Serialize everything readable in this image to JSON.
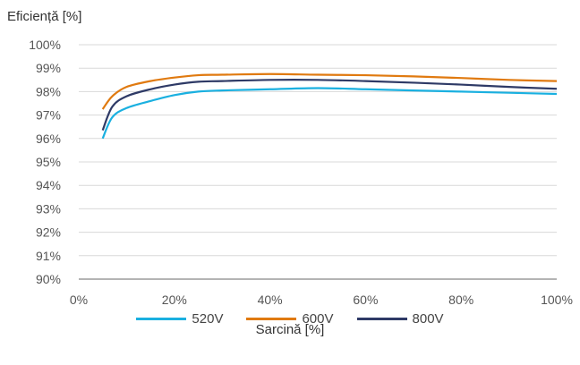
{
  "chart_data": {
    "type": "line",
    "ylabel": "Eficiență [%]",
    "xlabel": "Sarcină [%]",
    "xlim": [
      0,
      100
    ],
    "ylim": [
      90,
      100
    ],
    "x_ticks": [
      "0%",
      "20%",
      "40%",
      "60%",
      "80%",
      "100%"
    ],
    "y_ticks": [
      "90%",
      "91%",
      "92%",
      "93%",
      "94%",
      "95%",
      "96%",
      "97%",
      "98%",
      "99%",
      "100%"
    ],
    "grid": true,
    "legend_position": "bottom",
    "series": [
      {
        "name": "520V",
        "color": "#1ab0e0",
        "x": [
          5,
          7,
          10,
          15,
          20,
          25,
          30,
          40,
          50,
          60,
          70,
          80,
          90,
          100
        ],
        "y": [
          96.0,
          96.9,
          97.3,
          97.6,
          97.85,
          98.0,
          98.05,
          98.1,
          98.15,
          98.1,
          98.05,
          98.0,
          97.95,
          97.9
        ]
      },
      {
        "name": "600V",
        "color": "#e07a10",
        "x": [
          5,
          7,
          10,
          15,
          20,
          25,
          30,
          40,
          50,
          60,
          70,
          80,
          90,
          100
        ],
        "y": [
          97.25,
          97.8,
          98.2,
          98.45,
          98.6,
          98.7,
          98.72,
          98.75,
          98.72,
          98.7,
          98.65,
          98.58,
          98.5,
          98.45
        ]
      },
      {
        "name": "800V",
        "color": "#2e3a66",
        "x": [
          5,
          7,
          10,
          15,
          20,
          25,
          30,
          40,
          50,
          60,
          70,
          80,
          90,
          100
        ],
        "y": [
          96.35,
          97.35,
          97.8,
          98.1,
          98.3,
          98.42,
          98.45,
          98.5,
          98.5,
          98.45,
          98.38,
          98.3,
          98.2,
          98.12
        ]
      }
    ]
  }
}
